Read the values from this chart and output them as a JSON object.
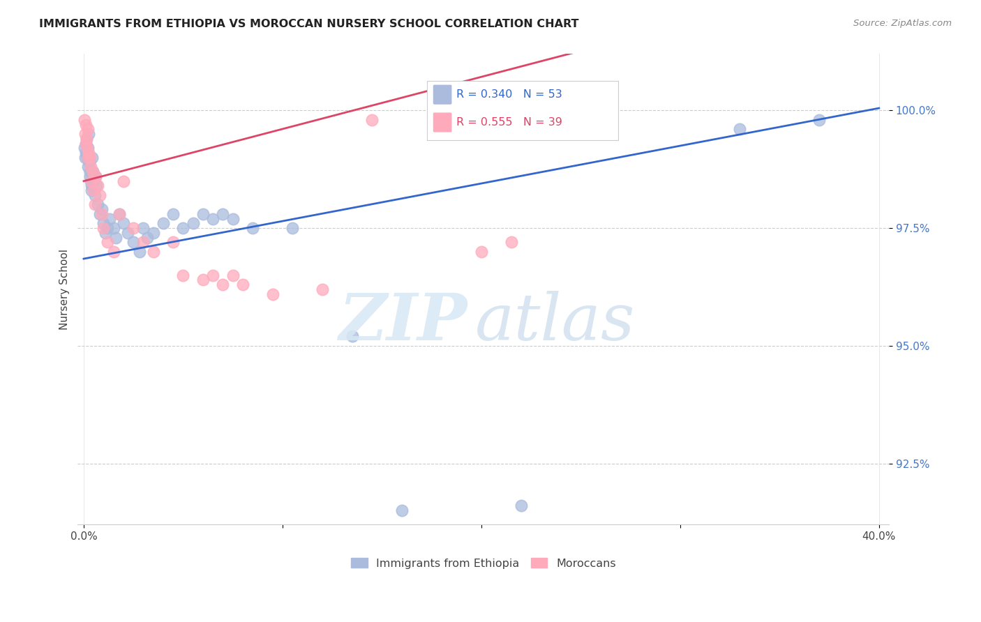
{
  "title": "IMMIGRANTS FROM ETHIOPIA VS MOROCCAN NURSERY SCHOOL CORRELATION CHART",
  "source": "Source: ZipAtlas.com",
  "ylabel": "Nursery School",
  "ytick_values": [
    92.5,
    95.0,
    97.5,
    100.0
  ],
  "ymin": 91.2,
  "ymax": 101.2,
  "xmin": -0.3,
  "xmax": 40.5,
  "legend1_label": "Immigrants from Ethiopia",
  "legend2_label": "Moroccans",
  "r1": "R = 0.340",
  "n1": "N = 53",
  "r2": "R = 0.555",
  "n2": "N = 39",
  "blue_color": "#aabbdd",
  "pink_color": "#ffaabb",
  "blue_line_color": "#3366cc",
  "pink_line_color": "#dd4466",
  "blue_line_x0": 0.0,
  "blue_line_y0": 96.85,
  "blue_line_x1": 40.0,
  "blue_line_y1": 100.05,
  "pink_line_x0": 0.0,
  "pink_line_y0": 98.5,
  "pink_line_x1": 14.0,
  "pink_line_y1": 100.05,
  "blue_scatter_x": [
    0.05,
    0.08,
    0.1,
    0.12,
    0.15,
    0.18,
    0.2,
    0.22,
    0.25,
    0.28,
    0.3,
    0.32,
    0.35,
    0.38,
    0.4,
    0.42,
    0.45,
    0.5,
    0.55,
    0.6,
    0.65,
    0.7,
    0.8,
    0.9,
    1.0,
    1.1,
    1.2,
    1.3,
    1.5,
    1.6,
    1.8,
    2.0,
    2.2,
    2.5,
    2.8,
    3.0,
    3.2,
    3.5,
    4.0,
    4.5,
    5.0,
    5.5,
    6.0,
    6.5,
    7.0,
    7.5,
    8.5,
    10.5,
    13.5,
    16.0,
    22.0,
    33.0,
    37.0
  ],
  "blue_scatter_y": [
    99.2,
    99.0,
    99.3,
    99.1,
    99.4,
    99.0,
    98.8,
    99.2,
    99.5,
    98.9,
    98.6,
    98.7,
    98.5,
    98.3,
    98.4,
    99.0,
    98.7,
    98.5,
    98.2,
    98.6,
    98.4,
    98.0,
    97.8,
    97.9,
    97.6,
    97.4,
    97.5,
    97.7,
    97.5,
    97.3,
    97.8,
    97.6,
    97.4,
    97.2,
    97.0,
    97.5,
    97.3,
    97.4,
    97.6,
    97.8,
    97.5,
    97.6,
    97.8,
    97.7,
    97.8,
    97.7,
    97.5,
    97.5,
    95.2,
    91.5,
    91.6,
    99.6,
    99.8
  ],
  "pink_scatter_x": [
    0.05,
    0.08,
    0.1,
    0.12,
    0.15,
    0.18,
    0.2,
    0.22,
    0.25,
    0.3,
    0.35,
    0.4,
    0.45,
    0.5,
    0.55,
    0.6,
    0.7,
    0.8,
    0.9,
    1.0,
    1.2,
    1.5,
    1.8,
    2.0,
    2.5,
    3.0,
    3.5,
    4.5,
    5.0,
    6.0,
    6.5,
    7.0,
    7.5,
    8.0,
    9.5,
    12.0,
    14.5,
    20.0,
    21.5
  ],
  "pink_scatter_y": [
    99.8,
    99.5,
    99.7,
    99.3,
    99.4,
    99.2,
    99.6,
    99.0,
    99.1,
    99.0,
    98.8,
    98.5,
    98.7,
    98.3,
    98.0,
    98.6,
    98.4,
    98.2,
    97.8,
    97.5,
    97.2,
    97.0,
    97.8,
    98.5,
    97.5,
    97.2,
    97.0,
    97.2,
    96.5,
    96.4,
    96.5,
    96.3,
    96.5,
    96.3,
    96.1,
    96.2,
    99.8,
    97.0,
    97.2
  ]
}
